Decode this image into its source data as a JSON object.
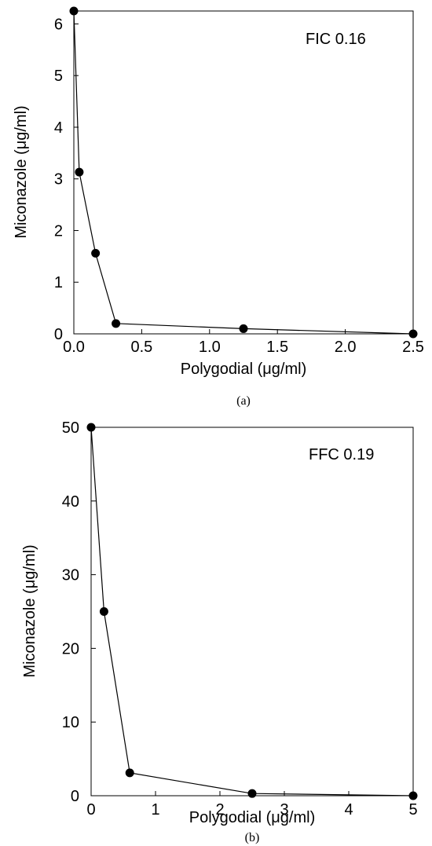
{
  "chart_data": [
    {
      "type": "line",
      "xlabel": "Polygodial (μg/ml)",
      "ylabel": "Miconazole (μg/ml)",
      "annotation": "FIC 0.16",
      "caption": "(a)",
      "xlim": [
        0,
        2.5
      ],
      "ylim": [
        0,
        6.25
      ],
      "x_ticks": [
        0.0,
        0.5,
        1.0,
        1.5,
        2.0,
        2.5
      ],
      "x_tick_labels": [
        "0.0",
        "0.5",
        "1.0",
        "1.5",
        "2.0",
        "2.5"
      ],
      "y_ticks": [
        0,
        1,
        2,
        3,
        4,
        5,
        6
      ],
      "y_tick_labels": [
        "0",
        "1",
        "2",
        "3",
        "4",
        "5",
        "6"
      ],
      "grid": false,
      "series": [
        {
          "x": [
            0,
            0.04,
            0.16,
            0.31,
            1.25,
            2.5
          ],
          "y": [
            6.25,
            3.13,
            1.56,
            0.2,
            0.1,
            0
          ]
        }
      ]
    },
    {
      "type": "line",
      "xlabel": "Polygodial (μg/ml)",
      "ylabel": "Miconazole (μg/ml)",
      "annotation": "FFC 0.19",
      "caption": "(b)",
      "xlim": [
        0,
        5
      ],
      "ylim": [
        0,
        50
      ],
      "x_ticks": [
        0,
        1,
        2,
        3,
        4,
        5
      ],
      "x_tick_labels": [
        "0",
        "1",
        "2",
        "3",
        "4",
        "5"
      ],
      "y_ticks": [
        0,
        10,
        20,
        30,
        40,
        50
      ],
      "y_tick_labels": [
        "0",
        "10",
        "20",
        "30",
        "40",
        "50"
      ],
      "grid": false,
      "series": [
        {
          "x": [
            0,
            0.2,
            0.6,
            2.5,
            5
          ],
          "y": [
            50,
            25,
            3.1,
            0.3,
            0
          ]
        }
      ]
    }
  ]
}
